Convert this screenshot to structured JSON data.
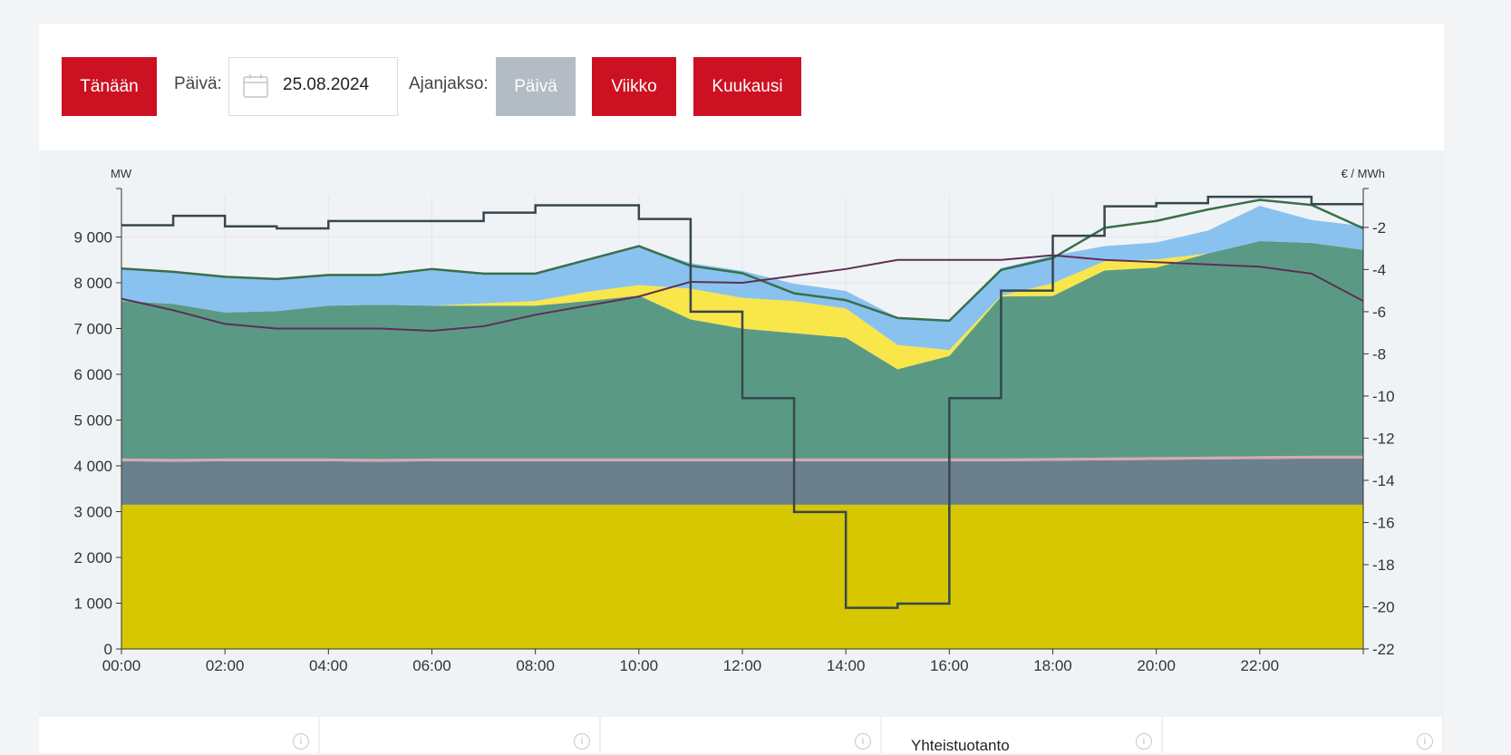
{
  "toolbar": {
    "today_label": "Tänään",
    "date_label": "Päivä:",
    "date_value": "25.08.2024",
    "period_label": "Ajanjakso:",
    "period_day": "Päivä",
    "period_week": "Viikko",
    "period_month": "Kuukausi"
  },
  "icons": {
    "calendar": "calendar-icon",
    "info": "info-icon"
  },
  "colors": {
    "nuclear": "#d6c700",
    "slate": "#6b808c",
    "pink": "#d7a7b2",
    "green": "#5a9a85",
    "yellow": "#f8e64a",
    "blue": "#89c2ef",
    "consumption_line": "#3a6e4a",
    "purple_line": "#5e2f53",
    "price_line": "#37474f",
    "accent_red": "#cc1222"
  },
  "chart_data": {
    "type": "area",
    "y_left_unit": "MW",
    "y_right_unit": "€ / MWh",
    "y_left_range": [
      0,
      9900
    ],
    "y_right_range": [
      -22,
      -0.5
    ],
    "y_left_ticks": [
      "0",
      "1 000",
      "2 000",
      "3 000",
      "4 000",
      "5 000",
      "6 000",
      "7 000",
      "8 000",
      "9 000"
    ],
    "y_right_ticks": [
      "-2",
      "-4",
      "-6",
      "-8",
      "-10",
      "-12",
      "-14",
      "-16",
      "-18",
      "-20",
      "-22"
    ],
    "x_ticks": [
      "00:00",
      "02:00",
      "04:00",
      "06:00",
      "08:00",
      "10:00",
      "12:00",
      "14:00",
      "16:00",
      "18:00",
      "20:00",
      "22:00"
    ],
    "hours": [
      0,
      1,
      2,
      3,
      4,
      5,
      6,
      7,
      8,
      9,
      10,
      11,
      12,
      13,
      14,
      15,
      16,
      17,
      18,
      19,
      20,
      21,
      22,
      23,
      24
    ],
    "layers": [
      {
        "key": "nuclear",
        "color": "#d6c700",
        "values": [
          3150,
          3150,
          3150,
          3150,
          3150,
          3150,
          3150,
          3150,
          3150,
          3150,
          3150,
          3150,
          3150,
          3150,
          3150,
          3150,
          3150,
          3150,
          3150,
          3150,
          3150,
          3150,
          3150,
          3150,
          3150
        ]
      },
      {
        "key": "slate",
        "color": "#6b808c",
        "values": [
          950,
          940,
          950,
          950,
          950,
          940,
          950,
          950,
          950,
          950,
          950,
          950,
          950,
          950,
          950,
          950,
          950,
          950,
          960,
          970,
          980,
          990,
          1000,
          1010,
          1010
        ]
      },
      {
        "key": "pink",
        "color": "#d7a7b2",
        "values": [
          60,
          60,
          60,
          60,
          60,
          60,
          60,
          60,
          60,
          60,
          60,
          60,
          60,
          60,
          60,
          60,
          60,
          60,
          60,
          60,
          60,
          60,
          60,
          60,
          60
        ]
      },
      {
        "key": "green",
        "color": "#5a9a85",
        "values": [
          3440,
          3390,
          3190,
          3220,
          3340,
          3370,
          3340,
          3340,
          3340,
          3440,
          3560,
          3040,
          2840,
          2740,
          2640,
          1950,
          2240,
          3540,
          3540,
          4090,
          4140,
          4440,
          4700,
          4650,
          4500
        ]
      },
      {
        "key": "yellow",
        "color": "#f8e64a",
        "values": [
          0,
          0,
          0,
          0,
          0,
          0,
          0,
          50,
          100,
          200,
          230,
          670,
          670,
          700,
          640,
          530,
          130,
          20,
          280,
          200,
          180,
          0,
          0,
          0,
          0
        ]
      },
      {
        "key": "blue",
        "color": "#89c2ef",
        "values": [
          710,
          700,
          780,
          700,
          670,
          650,
          800,
          650,
          600,
          700,
          850,
          560,
          590,
          380,
          380,
          600,
          640,
          600,
          600,
          330,
          370,
          500,
          770,
          500,
          520
        ]
      }
    ],
    "consumption_line": [
      8310,
      8240,
      8130,
      8080,
      8170,
      8170,
      8300,
      8200,
      8200,
      8500,
      8800,
      8370,
      8210,
      7770,
      7620,
      7230,
      7170,
      8280,
      8540,
      9200,
      9350,
      9600,
      9810,
      9700,
      9190
    ],
    "purple_line": [
      7650,
      7400,
      7100,
      7000,
      7000,
      7000,
      6950,
      7050,
      7300,
      7500,
      7700,
      8020,
      8000,
      8150,
      8300,
      8500,
      8500,
      8500,
      8600,
      8500,
      8450,
      8400,
      8350,
      8200,
      7600
    ],
    "price_steps": [
      {
        "from": 0,
        "to": 1,
        "price": -1.9
      },
      {
        "from": 1,
        "to": 2,
        "price": -1.45
      },
      {
        "from": 2,
        "to": 3,
        "price": -1.95
      },
      {
        "from": 3,
        "to": 4,
        "price": -2.05
      },
      {
        "from": 4,
        "to": 7,
        "price": -1.7
      },
      {
        "from": 7,
        "to": 8,
        "price": -1.3
      },
      {
        "from": 8,
        "to": 10,
        "price": -0.95
      },
      {
        "from": 10,
        "to": 11,
        "price": -1.6
      },
      {
        "from": 11,
        "to": 12,
        "price": -6.0
      },
      {
        "from": 12,
        "to": 13,
        "price": -10.1
      },
      {
        "from": 13,
        "to": 14,
        "price": -15.5
      },
      {
        "from": 14,
        "to": 15,
        "price": -20.05
      },
      {
        "from": 15,
        "to": 16,
        "price": -19.85
      },
      {
        "from": 16,
        "to": 17,
        "price": -10.1
      },
      {
        "from": 17,
        "to": 18,
        "price": -5.0
      },
      {
        "from": 18,
        "to": 19,
        "price": -2.4
      },
      {
        "from": 19,
        "to": 20,
        "price": -1.0
      },
      {
        "from": 20,
        "to": 21,
        "price": -0.85
      },
      {
        "from": 21,
        "to": 23,
        "price": -0.55
      },
      {
        "from": 23,
        "to": 24,
        "price": -0.9
      }
    ],
    "grid": true,
    "legend": "none"
  },
  "cards": [
    {
      "title": ""
    },
    {
      "title": ""
    },
    {
      "title": ""
    },
    {
      "title": "Yhteistuotanto"
    },
    {
      "title": ""
    }
  ]
}
